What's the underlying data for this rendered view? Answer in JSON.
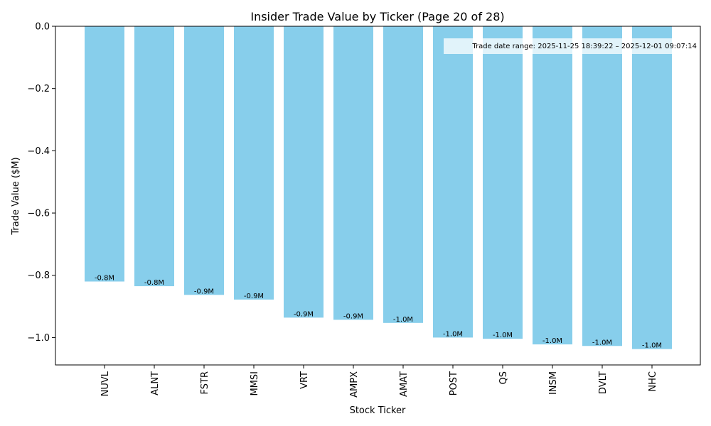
{
  "chart_data": {
    "type": "bar",
    "title": "Insider Trade Value by Ticker (Page 20 of 28)",
    "xlabel": "Stock Ticker",
    "ylabel": "Trade Value ($M)",
    "categories": [
      "NUVL",
      "ALNT",
      "FSTR",
      "MMSI",
      "VRT",
      "AMPX",
      "AMAT",
      "POST",
      "QS",
      "INSM",
      "DVLT",
      "NHC"
    ],
    "values": [
      -0.82,
      -0.835,
      -0.863,
      -0.878,
      -0.936,
      -0.943,
      -0.953,
      -1.0,
      -1.004,
      -1.022,
      -1.027,
      -1.037
    ],
    "data_labels": [
      "-0.8M",
      "-0.8M",
      "-0.9M",
      "-0.9M",
      "-0.9M",
      "-0.9M",
      "-1.0M",
      "-1.0M",
      "-1.0M",
      "-1.0M",
      "-1.0M",
      "-1.0M"
    ],
    "ylim": [
      -1.088,
      0
    ],
    "yticks": [
      0.0,
      -0.2,
      -0.4,
      -0.6,
      -0.8,
      -1.0
    ],
    "ytick_labels": [
      "0.0",
      "−0.2",
      "−0.4",
      "−0.6",
      "−0.8",
      "−1.0"
    ],
    "grid": false,
    "bar_color": "#87CEEB",
    "annotation": "Trade date range: 2025-11-25 18:39:22 – 2025-12-01 09:07:14"
  }
}
